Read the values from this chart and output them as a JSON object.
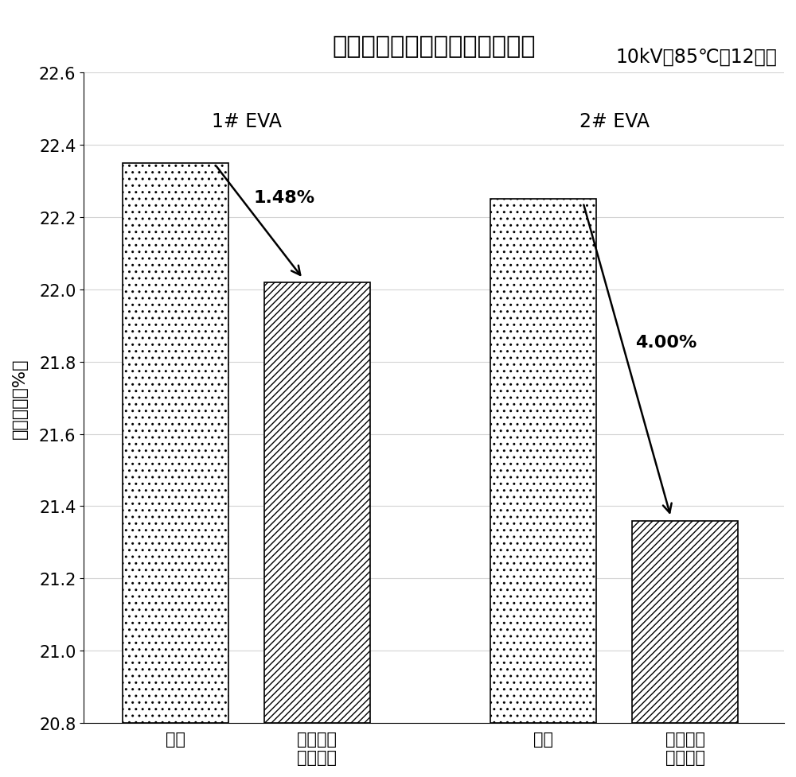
{
  "title": "封装材料对电势感应衰减的影响",
  "subtitle": "10kV，85℃，12小时",
  "ylabel": "电池效率（%）",
  "ylim": [
    20.8,
    22.6
  ],
  "yticks": [
    20.8,
    21.0,
    21.2,
    21.4,
    21.6,
    21.8,
    22.0,
    22.2,
    22.4,
    22.6
  ],
  "groups": [
    "1# EVA",
    "2# EVA"
  ],
  "cat1": "初始",
  "cat2": "加电感应\n衰减处理",
  "values": {
    "group1": [
      22.35,
      22.02
    ],
    "group2": [
      22.25,
      21.36
    ]
  },
  "annotations": [
    "1.48%",
    "4.00%"
  ],
  "edge_color": "black",
  "title_fontsize": 22,
  "subtitle_fontsize": 17,
  "axis_fontsize": 16,
  "tick_fontsize": 15,
  "annotation_fontsize": 16,
  "group_label_fontsize": 17,
  "background_color": "white"
}
